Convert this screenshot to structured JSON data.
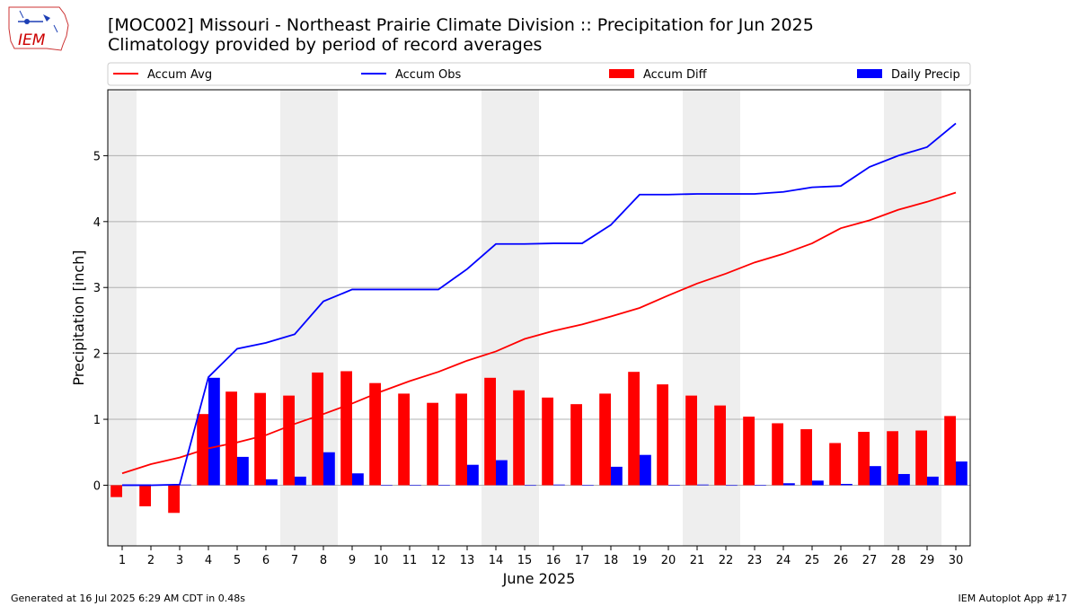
{
  "header": {
    "title": "[MOC002] Missouri - Northeast Prairie Climate Division :: Precipitation for Jun 2025",
    "subtitle": "Climatology provided by period of record averages",
    "logo_text": "IEM"
  },
  "footer": {
    "generated": "Generated at 16 Jul 2025 6:29 AM CDT in 0.48s",
    "app": "IEM Autoplot App #17"
  },
  "colors": {
    "avg": "#ff0000",
    "obs": "#0000ff",
    "diff": "#ff0000",
    "daily": "#0000ff",
    "weekend_band": "#eeeeee",
    "grid": "#b0b0b0"
  },
  "chart_data": {
    "type": "bar",
    "xlabel": "June 2025",
    "ylabel": "Precipitation [inch]",
    "xlim": [
      0.5,
      30.5
    ],
    "ylim": [
      -0.92,
      6.0
    ],
    "yticks": [
      0,
      1,
      2,
      3,
      4,
      5
    ],
    "grid": "horizontal",
    "legend_position": "top",
    "x": [
      1,
      2,
      3,
      4,
      5,
      6,
      7,
      8,
      9,
      10,
      11,
      12,
      13,
      14,
      15,
      16,
      17,
      18,
      19,
      20,
      21,
      22,
      23,
      24,
      25,
      26,
      27,
      28,
      29,
      30
    ],
    "shaded_days": [
      1,
      7,
      8,
      14,
      15,
      21,
      22,
      28,
      29
    ],
    "series": [
      {
        "name": "Accum Avg",
        "kind": "line",
        "color": "#ff0000",
        "values": [
          0.18,
          0.32,
          0.42,
          0.56,
          0.65,
          0.76,
          0.93,
          1.08,
          1.24,
          1.42,
          1.58,
          1.72,
          1.89,
          2.03,
          2.22,
          2.34,
          2.44,
          2.56,
          2.69,
          2.88,
          3.06,
          3.21,
          3.38,
          3.51,
          3.67,
          3.9,
          4.02,
          4.18,
          4.3,
          4.44
        ]
      },
      {
        "name": "Accum Obs",
        "kind": "line",
        "color": "#0000ff",
        "values": [
          0.0,
          0.0,
          0.01,
          1.64,
          2.07,
          2.16,
          2.29,
          2.79,
          2.97,
          2.97,
          2.97,
          2.97,
          3.28,
          3.66,
          3.66,
          3.67,
          3.67,
          3.95,
          4.41,
          4.41,
          4.42,
          4.42,
          4.42,
          4.45,
          4.52,
          4.54,
          4.83,
          5.0,
          5.13,
          5.49
        ]
      },
      {
        "name": "Accum Diff",
        "kind": "bar",
        "color": "#ff0000",
        "values": [
          -0.18,
          -0.32,
          -0.42,
          1.08,
          1.42,
          1.4,
          1.36,
          1.71,
          1.73,
          1.55,
          1.39,
          1.25,
          1.39,
          1.63,
          1.44,
          1.33,
          1.23,
          1.39,
          1.72,
          1.53,
          1.36,
          1.21,
          1.04,
          0.94,
          0.85,
          0.64,
          0.81,
          0.82,
          0.83,
          1.05
        ]
      },
      {
        "name": "Daily Precip",
        "kind": "bar",
        "color": "#0000ff",
        "values": [
          0.0,
          0.0,
          0.01,
          1.63,
          0.43,
          0.09,
          0.13,
          0.5,
          0.18,
          0.0,
          0.0,
          0.0,
          0.31,
          0.38,
          0.0,
          0.01,
          0.0,
          0.28,
          0.46,
          0.0,
          0.01,
          0.0,
          0.0,
          0.03,
          0.07,
          0.02,
          0.29,
          0.17,
          0.13,
          0.36
        ]
      }
    ]
  }
}
